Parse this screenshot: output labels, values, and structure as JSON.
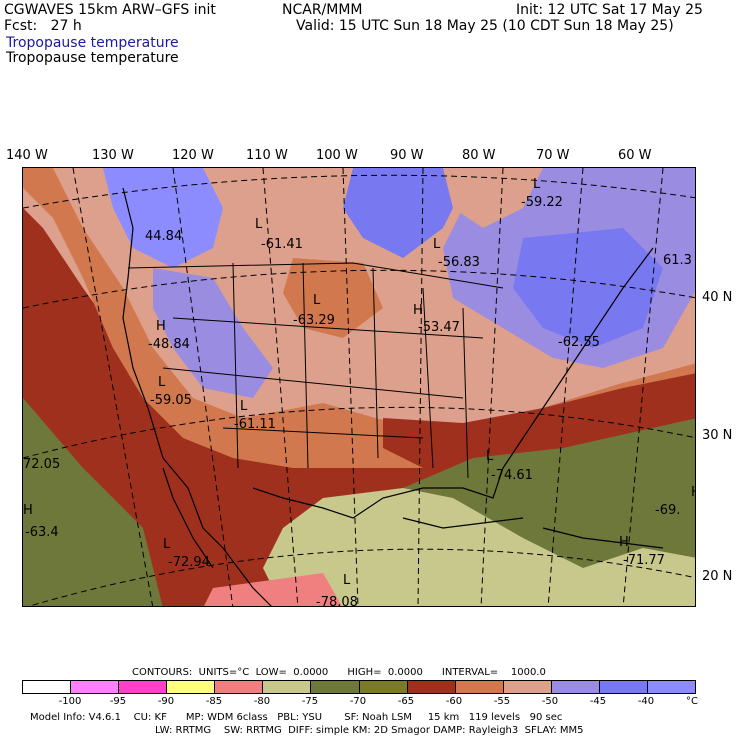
{
  "header": {
    "model": "CGWAVES 15km ARW–GFS init",
    "fcst": "Fcst:   27 h",
    "org": "NCAR/MMM",
    "init": "Init: 12 UTC Sat 17 May 25",
    "valid": "Valid: 15 UTC Sun 18 May 25 (10 CDT Sun 18 May 25)",
    "field_title_1": "Tropopause temperature",
    "field_title_2": "Tropopause temperature"
  },
  "lon_labels": [
    "140 W",
    "130 W",
    "120 W",
    "110 W",
    "100 W",
    "90 W",
    "80 W",
    "70 W",
    "60 W"
  ],
  "lat_labels": [
    "40 N",
    "30 N",
    "20 N"
  ],
  "map_labels": [
    {
      "type": "L",
      "value": "-59.22"
    },
    {
      "type": "L",
      "value": "-61.41"
    },
    {
      "type": "L",
      "value": "-56.83"
    },
    {
      "type": "",
      "value": "44.84"
    },
    {
      "type": "",
      "value": "61.3"
    },
    {
      "type": "L",
      "value": "-63.29"
    },
    {
      "type": "H",
      "value": "-53.47"
    },
    {
      "type": "H",
      "value": "-48.84"
    },
    {
      "type": "",
      "value": "-62.55"
    },
    {
      "type": "L",
      "value": "-59.05"
    },
    {
      "type": "L",
      "value": "-61.11"
    },
    {
      "type": "",
      "value": "72.05"
    },
    {
      "type": "L",
      "value": "-74.61"
    },
    {
      "type": "H",
      "value": "-63.4"
    },
    {
      "type": "H",
      "value": "-69."
    },
    {
      "type": "L",
      "value": "-72.94"
    },
    {
      "type": "H",
      "value": "-71.77"
    },
    {
      "type": "L",
      "value": "-78.08"
    }
  ],
  "contours": {
    "line": "CONTOURS:  UNITS=°C  LOW=  0.0000      HIGH=  0.0000      INTERVAL=    1000.0"
  },
  "legend": {
    "colors": [
      "#ffffff",
      "#ff80ff",
      "#ff40c8",
      "#ffff80",
      "#f08080",
      "#c8c88c",
      "#6e783a",
      "#7a7a28",
      "#a0301e",
      "#d2784e",
      "#dca08c",
      "#9a8ce0",
      "#7878f0",
      "#8c8cff"
    ],
    "labels": [
      "-100",
      "-95",
      "-90",
      "-85",
      "-80",
      "-75",
      "-70",
      "-65",
      "-60",
      "-55",
      "-50",
      "-45",
      "-40",
      "°C"
    ]
  },
  "footer": {
    "line1": "Model Info: V4.6.1    CU: KF      MP: WDM 6class   PBL: YSU       SF: Noah LSM     15 km   119 levels   90 sec",
    "line2": "LW: RRTMG    SW: RRTMG  DIFF: simple KM: 2D Smagor DAMP: Rayleigh3  SFLAY: MM5"
  }
}
